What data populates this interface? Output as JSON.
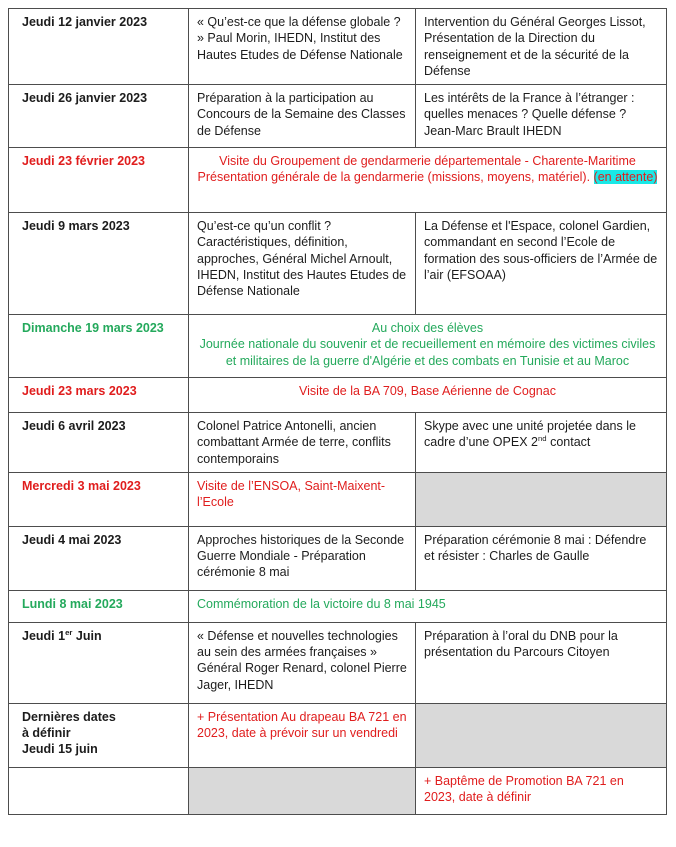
{
  "colors": {
    "date_red": "#e01d1d",
    "date_green": "#24a95c",
    "text_black": "#1c1c1c",
    "highlight_cyan": "#19e8e6",
    "cell_shading_gray": "#d9d9d9",
    "table_border": "#4d4d4d"
  },
  "rows": {
    "r1": {
      "date": "Jeudi 12 janvier 2023",
      "c2": "« Qu’est-ce que la défense globale ? » Paul Morin, IHEDN, Institut des Hautes Etudes de Défense Nationale",
      "c3": "Intervention du Général Georges Lissot, Présentation de la Direction du renseignement et de la sécurité de la Défense"
    },
    "r2": {
      "date": "Jeudi 26 janvier 2023",
      "c2": "Préparation à la participation au Concours de la Semaine des Classes de Défense",
      "c3": "Les intérêts de la France à l’étranger : quelles menaces ? Quelle défense ? Jean-Marc Brault IHEDN"
    },
    "r3": {
      "date": "Jeudi 23 février 2023",
      "line1": "Visite du Groupement de gendarmerie départementale - Charente-Maritime",
      "line2_pre": "Présentation générale de la gendarmerie (missions, moyens, matériel). ",
      "highlight": "(en attente)"
    },
    "r4": {
      "date": "Jeudi 9 mars 2023",
      "c2": "Qu’est-ce qu’un conflit ? Caractéristiques, définition, approches, Général Michel Arnoult, IHEDN, Institut des Hautes Etudes de Défense Nationale",
      "c3": "La Défense et l'Espace, colonel Gardien, commandant en second l’Ecole de formation des sous-officiers de l’Armée de l’air (EFSOAA)"
    },
    "r5": {
      "date": "Dimanche 19 mars 2023",
      "line1": "Au choix des élèves",
      "line2": "Journée nationale du souvenir et de recueillement en mémoire des victimes civiles et militaires de la guerre d'Algérie et des combats en Tunisie et au Maroc"
    },
    "r6": {
      "date": "Jeudi 23 mars 2023",
      "c": "Visite de la BA 709, Base Aérienne de Cognac"
    },
    "r7": {
      "date": "Jeudi 6 avril 2023",
      "c2": "Colonel Patrice Antonelli, ancien combattant Armée de terre, conflits contemporains",
      "c3_pre": "Skype avec une unité projetée dans le cadre d’une OPEX 2",
      "c3_sup": "nd",
      "c3_post": " contact"
    },
    "r8": {
      "date": "Mercredi 3 mai 2023",
      "c2": "Visite de l’ENSOA, Saint-Maixent-l’Ecole"
    },
    "r9": {
      "date": "Jeudi 4 mai 2023",
      "c2": "Approches historiques de la Seconde Guerre Mondiale - Préparation cérémonie 8 mai",
      "c3": "Préparation cérémonie 8 mai : Défendre et résister : Charles de Gaulle"
    },
    "r10": {
      "date": "Lundi 8 mai 2023",
      "c": "Commémoration de la victoire du 8 mai 1945"
    },
    "r11": {
      "date_pre": "Jeudi 1",
      "date_sup": "er",
      "date_post": " Juin",
      "c2": "« Défense et nouvelles technologies au sein des armées françaises » Général Roger Renard, colonel Pierre Jager, IHEDN",
      "c3": "Préparation à l’oral du DNB pour la présentation du Parcours Citoyen"
    },
    "r12": {
      "date_line1": "Dernières dates",
      "date_line2": "à définir",
      "date_line3": "Jeudi 15 juin",
      "c2": "+ Présentation Au drapeau BA 721 en 2023, date à prévoir sur un vendredi"
    },
    "r13": {
      "c3": "+ Baptême de Promotion BA 721 en 2023, date à définir"
    }
  }
}
